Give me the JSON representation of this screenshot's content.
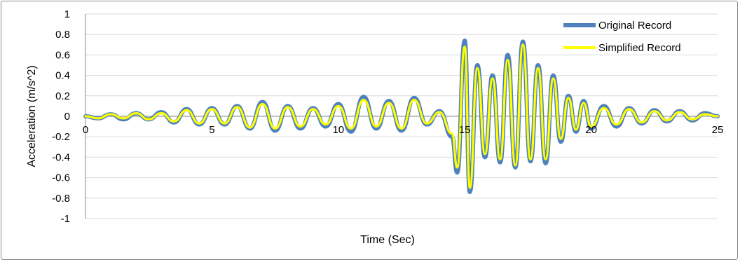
{
  "chart_data": {
    "type": "line",
    "title": "",
    "xlabel": "Time (Sec)",
    "ylabel": "Acceleration (m/s^2)",
    "xlim": [
      0,
      25
    ],
    "ylim": [
      -1,
      1
    ],
    "x_ticks": [
      "0",
      "5",
      "10",
      "15",
      "20",
      "25"
    ],
    "y_ticks": [
      "1",
      "0.8",
      "0.6",
      "0.4",
      "0.2",
      "0",
      "-0.2",
      "-0.4",
      "-0.6",
      "-0.8",
      "-1"
    ],
    "grid": "horizontal",
    "legend_position": "top-right",
    "series": [
      {
        "name": "Original Record",
        "color": "#4f81bd",
        "x": [
          0,
          0.5,
          1,
          1.5,
          2,
          2.5,
          3,
          3.5,
          4,
          4.5,
          5,
          5.5,
          6,
          6.5,
          7,
          7.5,
          8,
          8.5,
          9,
          9.5,
          10,
          10.5,
          11,
          11.5,
          12,
          12.5,
          13,
          13.5,
          14,
          14.5,
          14.7,
          15.0,
          15.2,
          15.5,
          15.8,
          16.1,
          16.4,
          16.7,
          17.0,
          17.3,
          17.6,
          17.9,
          18.2,
          18.5,
          18.8,
          19.1,
          19.4,
          19.7,
          20,
          20.5,
          21,
          21.5,
          22,
          22.5,
          23,
          23.5,
          24,
          24.5,
          25
        ],
        "y": [
          0.0,
          -0.02,
          0.02,
          -0.03,
          0.03,
          -0.03,
          0.04,
          -0.06,
          0.07,
          -0.08,
          0.08,
          -0.08,
          0.1,
          -0.12,
          0.14,
          -0.14,
          0.1,
          -0.12,
          0.08,
          -0.1,
          0.12,
          -0.15,
          0.19,
          -0.12,
          0.15,
          -0.14,
          0.18,
          -0.08,
          0.05,
          -0.2,
          -0.55,
          0.74,
          -0.74,
          0.5,
          -0.4,
          0.4,
          -0.45,
          0.6,
          -0.5,
          0.73,
          -0.44,
          0.5,
          -0.46,
          0.4,
          -0.25,
          0.2,
          -0.15,
          0.15,
          -0.12,
          0.1,
          -0.1,
          0.08,
          -0.07,
          0.06,
          -0.05,
          0.05,
          -0.04,
          0.03,
          0.0
        ]
      },
      {
        "name": "Simplified Record",
        "color": "#ffff00",
        "x": [
          0,
          0.5,
          1,
          1.5,
          2,
          2.5,
          3,
          3.5,
          4,
          4.5,
          5,
          5.5,
          6,
          6.5,
          7,
          7.5,
          8,
          8.5,
          9,
          9.5,
          10,
          10.5,
          11,
          11.5,
          12,
          12.5,
          13,
          13.5,
          14,
          14.5,
          14.7,
          15.0,
          15.2,
          15.5,
          15.8,
          16.1,
          16.4,
          16.7,
          17.0,
          17.3,
          17.6,
          17.9,
          18.2,
          18.5,
          18.8,
          19.1,
          19.4,
          19.7,
          20,
          20.5,
          21,
          21.5,
          22,
          22.5,
          23,
          23.5,
          24,
          24.5,
          25
        ],
        "y": [
          0.0,
          -0.02,
          0.02,
          -0.02,
          0.03,
          -0.03,
          0.03,
          -0.05,
          0.06,
          -0.07,
          0.07,
          -0.07,
          0.09,
          -0.11,
          0.12,
          -0.12,
          0.09,
          -0.1,
          0.07,
          -0.08,
          0.1,
          -0.12,
          0.16,
          -0.1,
          0.13,
          -0.12,
          0.16,
          -0.07,
          0.04,
          -0.17,
          -0.5,
          0.68,
          -0.7,
          0.47,
          -0.37,
          0.37,
          -0.42,
          0.55,
          -0.48,
          0.7,
          -0.42,
          0.47,
          -0.42,
          0.37,
          -0.22,
          0.18,
          -0.13,
          0.13,
          -0.1,
          0.08,
          -0.08,
          0.07,
          -0.06,
          0.05,
          -0.04,
          0.04,
          -0.03,
          0.02,
          0.0
        ]
      }
    ]
  }
}
